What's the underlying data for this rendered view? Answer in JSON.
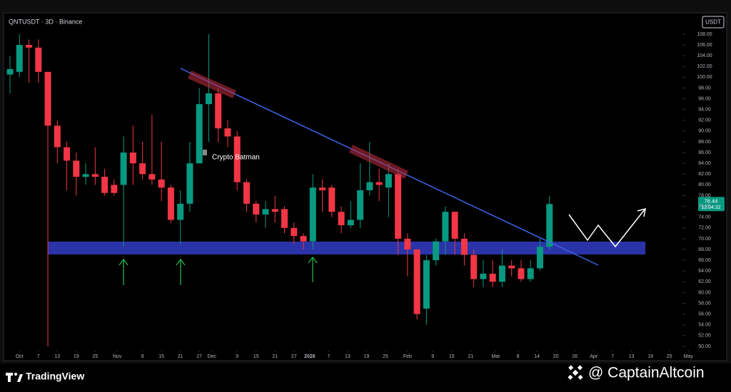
{
  "chart_data": {
    "type": "candlestick",
    "title": "QNTUSDT · 3D · Binance",
    "currency": "USDT",
    "annotation": "Crypto Batman",
    "last_price": 76.44,
    "countdown": "12:04:32",
    "up_color": "#089981",
    "down_color": "#f23645",
    "open": [
      100.5,
      101,
      106,
      105.5,
      101,
      91,
      87,
      84.5,
      81.5,
      82,
      81.5,
      80,
      80,
      86,
      84,
      82,
      81,
      79.5,
      73.5,
      76.5,
      84,
      95,
      97,
      90.5,
      89,
      80.5,
      76.5,
      74.5,
      75.5,
      75.5,
      72,
      70.5,
      69.5,
      79.5,
      79.5,
      75,
      72.5,
      73.5,
      79,
      80.5,
      79.5,
      82,
      70,
      68,
      57,
      66,
      69.5,
      75,
      70,
      67,
      62.5,
      63.5,
      62,
      65,
      64.5,
      62.5,
      64.5,
      68.5
    ],
    "high": [
      104,
      108,
      107,
      107,
      101,
      92,
      88,
      86,
      84,
      87,
      83,
      81,
      89,
      91,
      88,
      93,
      88,
      80,
      79,
      88,
      98,
      108,
      98,
      92,
      90,
      81,
      77,
      77,
      78,
      76,
      73,
      71,
      82,
      81,
      80,
      76,
      77,
      84,
      88,
      83,
      84,
      83,
      71,
      68,
      67,
      70,
      76,
      75,
      71,
      68,
      66,
      66,
      68,
      66,
      66,
      66,
      70,
      78
    ],
    "low": [
      97,
      100,
      99,
      99,
      50,
      84,
      79,
      78,
      80,
      80,
      78,
      78,
      68.5,
      80,
      81,
      80,
      77,
      73,
      69,
      75,
      84,
      88,
      88,
      87,
      79,
      75,
      73,
      72,
      73,
      71,
      69,
      68,
      68,
      75,
      74,
      71,
      72,
      72,
      78,
      77,
      74,
      67,
      63,
      55,
      54,
      65,
      67,
      67,
      65,
      61,
      61,
      61,
      61,
      63,
      62,
      62,
      64,
      68
    ],
    "close": [
      101.5,
      106,
      105.5,
      101,
      91,
      87,
      84.5,
      81.5,
      82,
      81.5,
      78.5,
      78.5,
      86,
      84,
      82,
      81,
      79.5,
      73.5,
      76.5,
      84,
      95,
      97,
      90.5,
      89,
      80.5,
      76.5,
      74.5,
      75.5,
      75,
      72,
      70.5,
      69.5,
      79.5,
      79,
      75,
      72.5,
      73.5,
      79,
      80.5,
      80,
      82,
      70,
      68,
      56,
      66,
      69.5,
      75,
      70,
      67,
      62.5,
      63.5,
      62,
      65,
      64.5,
      62.5,
      64.5,
      68.5,
      76.44
    ],
    "xlim": [
      -0.68,
      75.5
    ],
    "ylim": [
      49.2,
      111.7
    ],
    "xticks": [
      {
        "value": 1,
        "label": "Oct"
      },
      {
        "value": 3,
        "label": "7"
      },
      {
        "value": 5,
        "label": "13"
      },
      {
        "value": 7,
        "label": "19"
      },
      {
        "value": 9,
        "label": "25"
      },
      {
        "value": 11.33,
        "label": "Nov"
      },
      {
        "value": 14,
        "label": "9"
      },
      {
        "value": 16,
        "label": "15"
      },
      {
        "value": 18,
        "label": "21"
      },
      {
        "value": 20,
        "label": "27"
      },
      {
        "value": 21.33,
        "label": "Dec"
      },
      {
        "value": 24,
        "label": "9"
      },
      {
        "value": 26,
        "label": "15"
      },
      {
        "value": 28,
        "label": "21"
      },
      {
        "value": 30,
        "label": "27"
      },
      {
        "value": 31.67,
        "label": "2026"
      },
      {
        "value": 33.67,
        "label": "7"
      },
      {
        "value": 35.67,
        "label": "13"
      },
      {
        "value": 37.67,
        "label": "19"
      },
      {
        "value": 39.67,
        "label": "25"
      },
      {
        "value": 42,
        "label": "Feb"
      },
      {
        "value": 44.67,
        "label": "9"
      },
      {
        "value": 46.67,
        "label": "15"
      },
      {
        "value": 48.67,
        "label": "21"
      },
      {
        "value": 51.33,
        "label": "Mar"
      },
      {
        "value": 53.67,
        "label": "8"
      },
      {
        "value": 55.67,
        "label": "14"
      },
      {
        "value": 57.67,
        "label": "20"
      },
      {
        "value": 59.67,
        "label": "26"
      },
      {
        "value": 61.67,
        "label": "Apr"
      },
      {
        "value": 63.67,
        "label": "7"
      },
      {
        "value": 65.67,
        "label": "13"
      },
      {
        "value": 67.67,
        "label": "19"
      },
      {
        "value": 69.67,
        "label": "25"
      },
      {
        "value": 71.67,
        "label": "May"
      }
    ],
    "yticks": [
      {
        "value": 50,
        "label": "50.00"
      },
      {
        "value": 52,
        "label": "52.00"
      },
      {
        "value": 54,
        "label": "54.00"
      },
      {
        "value": 56,
        "label": "56.00"
      },
      {
        "value": 58,
        "label": "58.00"
      },
      {
        "value": 60,
        "label": "60.00"
      },
      {
        "value": 62,
        "label": "62.00"
      },
      {
        "value": 64,
        "label": "64.00"
      },
      {
        "value": 66,
        "label": "66.00"
      },
      {
        "value": 68,
        "label": "68.00"
      },
      {
        "value": 70,
        "label": "70.00"
      },
      {
        "value": 72,
        "label": "72.00"
      },
      {
        "value": 74,
        "label": "74.00"
      },
      {
        "value": 76,
        "label": "76.00"
      },
      {
        "value": 78,
        "label": "78.00"
      },
      {
        "value": 80,
        "label": "80.00"
      },
      {
        "value": 82,
        "label": "82.00"
      },
      {
        "value": 84,
        "label": "84.00"
      },
      {
        "value": 86,
        "label": "86.00"
      },
      {
        "value": 88,
        "label": "88.00"
      },
      {
        "value": 90,
        "label": "90.00"
      },
      {
        "value": 92,
        "label": "92.00"
      },
      {
        "value": 94,
        "label": "94.00"
      },
      {
        "value": 96,
        "label": "96.00"
      },
      {
        "value": 98,
        "label": "98.00"
      },
      {
        "value": 100,
        "label": "100.00"
      },
      {
        "value": 102,
        "label": "102.00"
      },
      {
        "value": 104,
        "label": "104.00"
      },
      {
        "value": 106,
        "label": "106.00"
      },
      {
        "value": 108,
        "label": "108.00"
      }
    ]
  },
  "footer": {
    "brand": "TradingView",
    "watermark": "@ CaptainAltcoin"
  }
}
